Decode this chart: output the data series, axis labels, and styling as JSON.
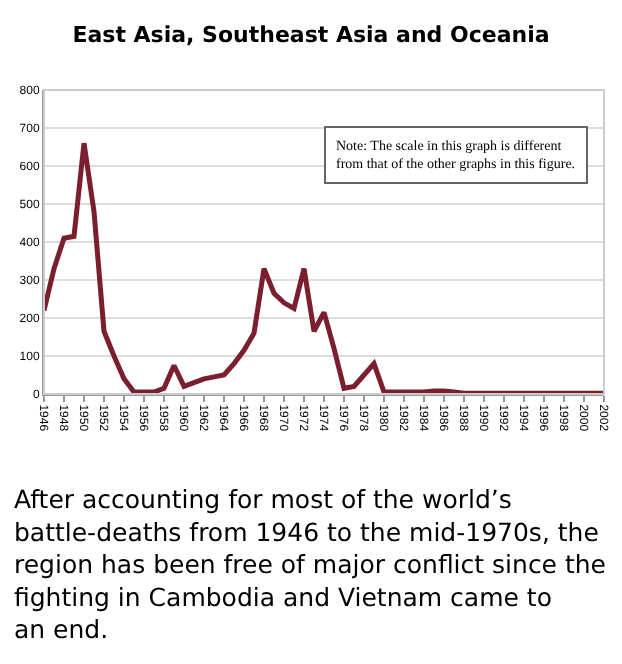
{
  "chart_data": {
    "type": "line",
    "title": "East Asia, Southeast Asia and Oceania",
    "x": [
      1946,
      1947,
      1948,
      1949,
      1950,
      1951,
      1952,
      1953,
      1954,
      1955,
      1956,
      1957,
      1958,
      1959,
      1960,
      1961,
      1962,
      1963,
      1964,
      1965,
      1966,
      1967,
      1968,
      1969,
      1970,
      1971,
      1972,
      1973,
      1974,
      1975,
      1976,
      1977,
      1978,
      1979,
      1980,
      1981,
      1982,
      1983,
      1984,
      1985,
      1986,
      1987,
      1988,
      1989,
      1990,
      1991,
      1992,
      1993,
      1994,
      1995,
      1996,
      1997,
      1998,
      1999,
      2000,
      2001,
      2002
    ],
    "series": [
      {
        "color": "#7b1e2e",
        "values": [
          220,
          330,
          410,
          415,
          660,
          480,
          165,
          100,
          40,
          5,
          5,
          5,
          15,
          75,
          20,
          30,
          40,
          45,
          50,
          80,
          115,
          160,
          330,
          265,
          240,
          225,
          330,
          165,
          215,
          120,
          15,
          20,
          50,
          80,
          5,
          5,
          5,
          5,
          5,
          8,
          8,
          5,
          2,
          2,
          2,
          2,
          2,
          2,
          2,
          2,
          2,
          2,
          2,
          2,
          2,
          2,
          2
        ]
      }
    ],
    "xlim": [
      1946,
      2002
    ],
    "xticks": [
      1946,
      1948,
      1950,
      1952,
      1954,
      1956,
      1958,
      1960,
      1962,
      1964,
      1966,
      1968,
      1970,
      1972,
      1974,
      1976,
      1978,
      1980,
      1982,
      1984,
      1986,
      1988,
      1990,
      1992,
      1994,
      1996,
      1998,
      2000,
      2002
    ],
    "ylim": [
      0,
      800
    ],
    "yticks": [
      0,
      100,
      200,
      300,
      400,
      500,
      600,
      700,
      800
    ],
    "grid": "y",
    "marker": "none",
    "line_style": "solid",
    "annotations": [
      "Note: The scale in this graph is different\nfrom that of the other graphs in this figure.",
      "After accounting for most of the world’s\nbattle-deaths from 1946 to the mid-1970s, the\nregion has been free of major conflict since the\nfighting in Cambodia and Vietnam came to\nan end."
    ]
  }
}
